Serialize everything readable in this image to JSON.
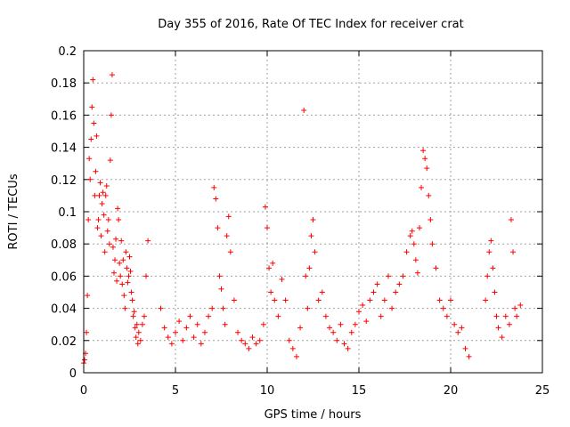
{
  "chart_data": {
    "type": "scatter",
    "title": "Day 355 of 2016, Rate Of TEC Index for receiver crat",
    "xlabel": "GPS time / hours",
    "ylabel": "ROTI / TECUs",
    "xlim": [
      0,
      25
    ],
    "ylim": [
      0,
      0.2
    ],
    "grid": true,
    "marker": "+",
    "series_color": "#ff0000",
    "x_ticks": [
      0,
      5,
      10,
      15,
      20,
      25
    ],
    "x_tick_labels": [
      "0",
      "5",
      "10",
      "15",
      "20",
      "25"
    ],
    "y_ticks": [
      0,
      0.02,
      0.04,
      0.06,
      0.08,
      0.1,
      0.12,
      0.14,
      0.16,
      0.18,
      0.2
    ],
    "y_tick_labels": [
      "0",
      "0.02",
      "0.04",
      "0.06",
      "0.08",
      "0.1",
      "0.12",
      "0.14",
      "0.16",
      "0.18",
      "0.2"
    ],
    "series": [
      {
        "x": [
          0.0,
          0.05,
          0.1,
          0.15,
          0.2,
          0.25,
          0.3,
          0.35,
          0.4,
          0.45,
          0.5,
          0.55,
          0.6,
          0.65,
          0.7,
          0.75,
          0.8,
          0.85,
          0.9,
          0.95,
          1.0,
          1.05,
          1.1,
          1.15,
          1.2,
          1.25,
          1.3,
          1.35,
          1.4,
          1.45,
          1.5,
          1.55,
          1.6,
          1.65,
          1.7,
          1.75,
          1.8,
          1.85,
          1.9,
          1.95,
          2.0,
          2.05,
          2.1,
          2.15,
          2.2,
          2.25,
          2.3,
          2.35,
          2.4,
          2.45,
          2.5,
          2.55,
          2.6,
          2.65,
          2.7,
          2.75,
          2.8,
          2.85,
          2.9,
          2.95,
          3.0,
          3.1,
          3.2,
          3.3,
          3.4,
          3.5,
          4.2,
          4.4,
          4.6,
          4.8,
          5.0,
          5.2,
          5.4,
          5.6,
          5.8,
          6.0,
          6.2,
          6.4,
          6.6,
          6.8,
          7.0,
          7.1,
          7.2,
          7.3,
          7.4,
          7.5,
          7.6,
          7.7,
          7.8,
          7.9,
          8.0,
          8.2,
          8.4,
          8.6,
          8.8,
          9.0,
          9.2,
          9.4,
          9.6,
          9.8,
          9.9,
          10.0,
          10.1,
          10.2,
          10.3,
          10.4,
          10.6,
          10.8,
          11.0,
          11.2,
          11.4,
          11.6,
          11.8,
          12.0,
          12.1,
          12.2,
          12.3,
          12.4,
          12.5,
          12.6,
          12.8,
          13.0,
          13.2,
          13.4,
          13.6,
          13.8,
          14.0,
          14.2,
          14.4,
          14.6,
          14.8,
          15.0,
          15.2,
          15.4,
          15.6,
          15.8,
          16.0,
          16.2,
          16.4,
          16.6,
          16.8,
          17.0,
          17.2,
          17.4,
          17.6,
          17.8,
          17.9,
          18.0,
          18.1,
          18.2,
          18.3,
          18.4,
          18.5,
          18.6,
          18.7,
          18.8,
          18.9,
          19.0,
          19.2,
          19.4,
          19.6,
          19.8,
          20.0,
          20.2,
          20.4,
          20.6,
          20.8,
          21.0,
          21.9,
          22.0,
          22.1,
          22.2,
          22.3,
          22.4,
          22.5,
          22.6,
          22.8,
          23.0,
          23.2,
          23.3,
          23.4,
          23.5,
          23.6,
          23.8
        ],
        "y": [
          0.006,
          0.008,
          0.012,
          0.025,
          0.048,
          0.095,
          0.133,
          0.12,
          0.145,
          0.165,
          0.182,
          0.155,
          0.11,
          0.125,
          0.147,
          0.09,
          0.095,
          0.11,
          0.118,
          0.085,
          0.105,
          0.112,
          0.098,
          0.075,
          0.11,
          0.116,
          0.088,
          0.095,
          0.08,
          0.132,
          0.16,
          0.185,
          0.078,
          0.062,
          0.07,
          0.083,
          0.057,
          0.102,
          0.095,
          0.068,
          0.06,
          0.082,
          0.055,
          0.07,
          0.048,
          0.04,
          0.075,
          0.065,
          0.056,
          0.06,
          0.072,
          0.063,
          0.05,
          0.045,
          0.035,
          0.038,
          0.028,
          0.022,
          0.03,
          0.018,
          0.025,
          0.02,
          0.03,
          0.035,
          0.06,
          0.082,
          0.04,
          0.028,
          0.022,
          0.018,
          0.025,
          0.032,
          0.02,
          0.028,
          0.035,
          0.022,
          0.03,
          0.018,
          0.025,
          0.035,
          0.04,
          0.115,
          0.108,
          0.09,
          0.06,
          0.052,
          0.04,
          0.03,
          0.085,
          0.097,
          0.075,
          0.045,
          0.025,
          0.02,
          0.018,
          0.015,
          0.022,
          0.018,
          0.02,
          0.03,
          0.103,
          0.09,
          0.065,
          0.05,
          0.068,
          0.045,
          0.035,
          0.058,
          0.045,
          0.02,
          0.015,
          0.01,
          0.028,
          0.163,
          0.06,
          0.04,
          0.065,
          0.085,
          0.095,
          0.075,
          0.045,
          0.05,
          0.035,
          0.028,
          0.025,
          0.02,
          0.03,
          0.018,
          0.015,
          0.025,
          0.03,
          0.038,
          0.042,
          0.032,
          0.045,
          0.05,
          0.055,
          0.035,
          0.045,
          0.06,
          0.04,
          0.05,
          0.055,
          0.06,
          0.075,
          0.085,
          0.088,
          0.08,
          0.07,
          0.062,
          0.09,
          0.115,
          0.138,
          0.133,
          0.127,
          0.11,
          0.095,
          0.08,
          0.065,
          0.045,
          0.04,
          0.035,
          0.045,
          0.03,
          0.025,
          0.028,
          0.015,
          0.01,
          0.045,
          0.06,
          0.075,
          0.082,
          0.065,
          0.05,
          0.035,
          0.028,
          0.022,
          0.035,
          0.03,
          0.095,
          0.075,
          0.04,
          0.035,
          0.042
        ]
      }
    ]
  }
}
